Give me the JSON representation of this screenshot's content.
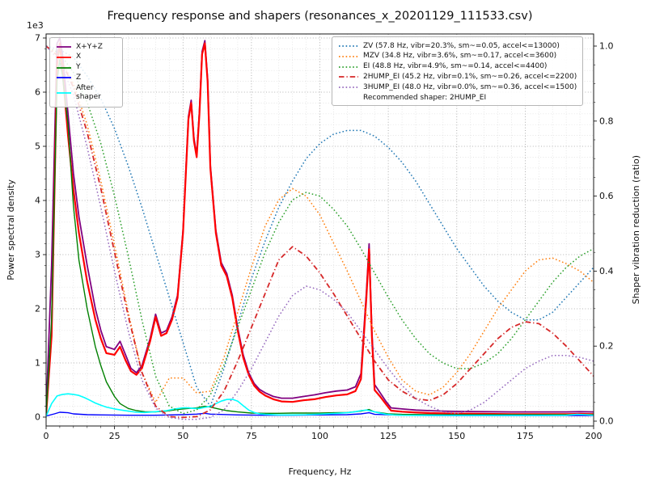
{
  "chart_data": {
    "type": "line",
    "title": "Frequency response and shapers (resonances_x_20201129_111533.csv)",
    "xlabel": "Frequency, Hz",
    "ylabel_left": "Power spectral density",
    "ylabel_right": "Shaper vibration reduction (ratio)",
    "left_axis_scale_label": "1e3",
    "xlim": [
      0,
      200
    ],
    "ylim_left": [
      0,
      7000
    ],
    "ylim_right": [
      0,
      1.0
    ],
    "grid": true,
    "legend_left_position": "upper-left",
    "legend_right_position": "upper-right",
    "x_ticks": [
      0,
      25,
      50,
      75,
      100,
      125,
      150,
      175,
      200
    ],
    "y_left_ticks": [
      0,
      1,
      2,
      3,
      4,
      5,
      6,
      7
    ],
    "y_right_ticks": [
      0,
      0.2,
      0.4,
      0.6,
      0.8,
      1.0
    ],
    "y_right_tick_labels": [
      "0.0",
      "0.2",
      "0.4",
      "0.6",
      "0.8",
      "1.0"
    ],
    "recommended_shaper_note": "Recommended shaper: 2HUMP_EI",
    "series": [
      {
        "name": "psd-sum",
        "label": "X+Y+Z",
        "axis": "left",
        "color": "#800080",
        "style": "solid",
        "width": 1.8,
        "x": [
          0,
          2,
          4,
          5,
          6,
          8,
          10,
          12,
          15,
          18,
          20,
          22,
          25,
          27,
          29,
          31,
          33,
          35,
          38,
          40,
          42,
          44,
          46,
          48,
          50,
          52,
          53,
          54,
          55,
          56,
          57,
          58,
          59,
          60,
          62,
          64,
          66,
          68,
          70,
          72,
          74,
          76,
          78,
          80,
          83,
          86,
          90,
          94,
          98,
          102,
          106,
          110,
          113,
          115,
          117,
          118,
          119,
          120,
          122,
          124,
          126,
          130,
          135,
          140,
          145,
          150,
          160,
          170,
          180,
          190,
          195,
          200
        ],
        "y": [
          60,
          2800,
          6900,
          7000,
          6700,
          5600,
          4500,
          3700,
          2800,
          2000,
          1600,
          1300,
          1250,
          1400,
          1150,
          900,
          820,
          950,
          1450,
          1900,
          1550,
          1600,
          1850,
          2250,
          3450,
          5550,
          5850,
          5150,
          4850,
          5650,
          6750,
          6950,
          6250,
          4650,
          3450,
          2850,
          2650,
          2250,
          1650,
          1150,
          820,
          620,
          510,
          450,
          380,
          350,
          350,
          380,
          410,
          450,
          480,
          500,
          560,
          800,
          2300,
          3200,
          1600,
          600,
          450,
          300,
          170,
          150,
          130,
          120,
          110,
          105,
          100,
          95,
          95,
          95,
          100,
          95
        ]
      },
      {
        "name": "psd-x",
        "label": "X",
        "axis": "left",
        "color": "#ff0000",
        "style": "solid",
        "width": 2.2,
        "x": [
          0,
          2,
          4,
          5,
          6,
          8,
          10,
          12,
          15,
          18,
          20,
          22,
          25,
          27,
          29,
          31,
          33,
          35,
          38,
          40,
          42,
          44,
          46,
          48,
          50,
          52,
          53,
          54,
          55,
          56,
          57,
          58,
          59,
          60,
          62,
          64,
          66,
          68,
          70,
          72,
          74,
          76,
          78,
          80,
          83,
          86,
          90,
          94,
          98,
          102,
          106,
          110,
          113,
          115,
          117,
          118,
          119,
          120,
          122,
          124,
          126,
          130,
          135,
          140,
          145,
          150,
          160,
          170,
          180,
          190,
          195,
          200
        ],
        "y": [
          30,
          1500,
          6500,
          6900,
          6400,
          5200,
          4200,
          3400,
          2500,
          1800,
          1450,
          1180,
          1150,
          1300,
          1050,
          850,
          780,
          900,
          1400,
          1850,
          1500,
          1550,
          1800,
          2200,
          3400,
          5500,
          5800,
          5100,
          4800,
          5600,
          6700,
          6900,
          6200,
          4600,
          3400,
          2800,
          2600,
          2200,
          1600,
          1100,
          780,
          580,
          470,
          400,
          330,
          290,
          280,
          310,
          330,
          370,
          400,
          420,
          480,
          700,
          2200,
          3100,
          1500,
          500,
          380,
          250,
          120,
          100,
          85,
          75,
          70,
          65,
          60,
          55,
          55,
          55,
          60,
          55
        ]
      },
      {
        "name": "psd-y",
        "label": "Y",
        "axis": "left",
        "color": "#008000",
        "style": "solid",
        "width": 1.4,
        "x": [
          0,
          2,
          4,
          5,
          6,
          8,
          10,
          12,
          15,
          18,
          20,
          22,
          25,
          27,
          30,
          33,
          36,
          40,
          44,
          48,
          52,
          55,
          58,
          60,
          63,
          66,
          70,
          75,
          80,
          85,
          90,
          95,
          100,
          105,
          110,
          115,
          118,
          120,
          125,
          130,
          140,
          150,
          160,
          170,
          180,
          190,
          200
        ],
        "y": [
          40,
          1800,
          6200,
          6600,
          6300,
          5400,
          3900,
          2900,
          2000,
          1300,
          950,
          650,
          380,
          250,
          160,
          120,
          100,
          95,
          110,
          140,
          160,
          170,
          200,
          185,
          150,
          120,
          95,
          75,
          70,
          70,
          75,
          75,
          75,
          80,
          85,
          110,
          140,
          95,
          60,
          50,
          45,
          45,
          45,
          45,
          45,
          45,
          45
        ]
      },
      {
        "name": "psd-z",
        "label": "Z",
        "axis": "left",
        "color": "#0000ff",
        "style": "solid",
        "width": 1.4,
        "x": [
          0,
          3,
          5,
          8,
          10,
          15,
          20,
          30,
          40,
          50,
          55,
          58,
          60,
          70,
          80,
          90,
          100,
          110,
          115,
          118,
          120,
          130,
          150,
          170,
          200
        ],
        "y": [
          20,
          60,
          90,
          80,
          60,
          45,
          40,
          35,
          35,
          45,
          55,
          70,
          55,
          40,
          35,
          35,
          40,
          45,
          60,
          80,
          50,
          35,
          30,
          30,
          30
        ]
      },
      {
        "name": "psd-after-shaper",
        "label": "After shaper",
        "axis": "left",
        "color": "#00ffff",
        "style": "solid",
        "width": 1.6,
        "x": [
          0,
          2,
          4,
          6,
          8,
          10,
          12,
          14,
          16,
          18,
          20,
          22,
          25,
          28,
          30,
          33,
          36,
          40,
          44,
          47,
          50,
          52,
          54,
          56,
          58,
          60,
          62,
          64,
          66,
          68,
          70,
          72,
          74,
          76,
          78,
          80,
          85,
          90,
          95,
          100,
          105,
          110,
          113,
          115,
          117,
          119,
          121,
          124,
          127,
          130,
          140,
          150,
          160,
          170,
          180,
          190,
          194,
          197,
          200
        ],
        "y": [
          15,
          250,
          390,
          420,
          430,
          420,
          400,
          360,
          310,
          260,
          220,
          185,
          150,
          125,
          110,
          90,
          85,
          100,
          120,
          150,
          170,
          170,
          160,
          160,
          180,
          200,
          250,
          295,
          325,
          330,
          295,
          210,
          130,
          85,
          60,
          50,
          40,
          40,
          45,
          55,
          65,
          80,
          100,
          120,
          130,
          110,
          85,
          55,
          40,
          35,
          30,
          30,
          30,
          30,
          30,
          35,
          50,
          45,
          35
        ]
      },
      {
        "name": "shaper-zv",
        "label": "ZV (57.8 Hz, vibr=20.3%, sm~=0.05, accel<=13000)",
        "axis": "right",
        "color": "#1f77b4",
        "style": "dotted",
        "width": 1.5,
        "x": [
          0,
          5,
          10,
          15,
          20,
          25,
          30,
          35,
          40,
          45,
          50,
          55,
          60,
          65,
          70,
          75,
          80,
          85,
          90,
          95,
          100,
          105,
          110,
          115,
          120,
          125,
          130,
          135,
          140,
          145,
          150,
          155,
          160,
          165,
          170,
          175,
          180,
          185,
          190,
          195,
          200
        ],
        "y": [
          1.0,
          0.99,
          0.97,
          0.92,
          0.86,
          0.78,
          0.68,
          0.57,
          0.45,
          0.33,
          0.21,
          0.09,
          0.04,
          0.14,
          0.26,
          0.38,
          0.48,
          0.57,
          0.64,
          0.7,
          0.74,
          0.765,
          0.775,
          0.775,
          0.76,
          0.73,
          0.69,
          0.64,
          0.58,
          0.52,
          0.46,
          0.41,
          0.36,
          0.32,
          0.29,
          0.27,
          0.27,
          0.29,
          0.33,
          0.37,
          0.41
        ]
      },
      {
        "name": "shaper-mzv",
        "label": "MZV (34.8 Hz, vibr=3.6%, sm~=0.17, accel<=3600)",
        "axis": "right",
        "color": "#ff7f0e",
        "style": "dotted",
        "width": 1.5,
        "x": [
          0,
          5,
          10,
          15,
          20,
          25,
          30,
          35,
          40,
          45,
          50,
          55,
          60,
          65,
          70,
          75,
          80,
          85,
          90,
          95,
          100,
          105,
          110,
          115,
          120,
          125,
          130,
          135,
          140,
          145,
          150,
          155,
          160,
          165,
          170,
          175,
          180,
          185,
          190,
          195,
          200
        ],
        "y": [
          1.0,
          0.97,
          0.9,
          0.79,
          0.64,
          0.47,
          0.29,
          0.13,
          0.05,
          0.115,
          0.115,
          0.075,
          0.08,
          0.17,
          0.29,
          0.41,
          0.52,
          0.59,
          0.62,
          0.6,
          0.55,
          0.475,
          0.4,
          0.32,
          0.24,
          0.17,
          0.11,
          0.08,
          0.07,
          0.09,
          0.13,
          0.18,
          0.24,
          0.3,
          0.35,
          0.4,
          0.43,
          0.435,
          0.42,
          0.4,
          0.37
        ]
      },
      {
        "name": "shaper-ei",
        "label": "EI (48.8 Hz, vibr=4.9%, sm~=0.14, accel<=4400)",
        "axis": "right",
        "color": "#2ca02c",
        "style": "dotted",
        "width": 1.5,
        "x": [
          0,
          5,
          10,
          15,
          20,
          25,
          30,
          35,
          40,
          45,
          50,
          55,
          60,
          65,
          70,
          75,
          80,
          85,
          90,
          95,
          100,
          105,
          110,
          115,
          120,
          125,
          130,
          135,
          140,
          145,
          150,
          155,
          160,
          165,
          170,
          175,
          180,
          185,
          190,
          195,
          200
        ],
        "y": [
          1.0,
          0.98,
          0.93,
          0.85,
          0.74,
          0.6,
          0.44,
          0.27,
          0.12,
          0.04,
          0.02,
          0.03,
          0.07,
          0.15,
          0.25,
          0.35,
          0.45,
          0.53,
          0.59,
          0.61,
          0.6,
          0.565,
          0.52,
          0.46,
          0.395,
          0.33,
          0.27,
          0.22,
          0.18,
          0.155,
          0.14,
          0.14,
          0.155,
          0.18,
          0.22,
          0.27,
          0.32,
          0.37,
          0.41,
          0.44,
          0.46
        ]
      },
      {
        "name": "shaper-2hump-ei",
        "label": "2HUMP_EI (45.2 Hz, vibr=0.1%, sm~=0.26, accel<=2200)",
        "axis": "right",
        "color": "#d62728",
        "style": "dashdot",
        "width": 1.8,
        "x": [
          0,
          5,
          10,
          15,
          20,
          25,
          30,
          35,
          40,
          45,
          50,
          55,
          60,
          65,
          70,
          75,
          80,
          85,
          90,
          95,
          100,
          105,
          110,
          115,
          120,
          125,
          130,
          135,
          140,
          145,
          150,
          155,
          160,
          165,
          170,
          175,
          180,
          185,
          190,
          195,
          200
        ],
        "y": [
          1.0,
          0.97,
          0.89,
          0.77,
          0.62,
          0.45,
          0.28,
          0.13,
          0.04,
          0.012,
          0.01,
          0.012,
          0.03,
          0.08,
          0.16,
          0.25,
          0.34,
          0.43,
          0.465,
          0.44,
          0.395,
          0.34,
          0.28,
          0.22,
          0.16,
          0.11,
          0.08,
          0.06,
          0.055,
          0.07,
          0.1,
          0.14,
          0.18,
          0.22,
          0.25,
          0.265,
          0.26,
          0.235,
          0.2,
          0.16,
          0.12
        ]
      },
      {
        "name": "shaper-3hump-ei",
        "label": "3HUMP_EI (48.0 Hz, vibr=0.0%, sm~=0.36, accel<=1500)",
        "axis": "right",
        "color": "#9467bd",
        "style": "dotted",
        "width": 1.5,
        "x": [
          0,
          5,
          10,
          15,
          20,
          25,
          30,
          35,
          40,
          45,
          50,
          55,
          60,
          65,
          70,
          75,
          80,
          85,
          90,
          95,
          100,
          105,
          110,
          115,
          120,
          125,
          130,
          135,
          140,
          145,
          150,
          155,
          160,
          165,
          170,
          175,
          180,
          185,
          190,
          195,
          200
        ],
        "y": [
          1.0,
          0.96,
          0.87,
          0.73,
          0.57,
          0.4,
          0.24,
          0.11,
          0.035,
          0.01,
          0.005,
          0.005,
          0.01,
          0.03,
          0.08,
          0.14,
          0.21,
          0.28,
          0.335,
          0.36,
          0.35,
          0.325,
          0.29,
          0.24,
          0.19,
          0.14,
          0.095,
          0.06,
          0.04,
          0.025,
          0.02,
          0.03,
          0.05,
          0.08,
          0.11,
          0.14,
          0.16,
          0.175,
          0.175,
          0.17,
          0.16
        ]
      }
    ]
  }
}
